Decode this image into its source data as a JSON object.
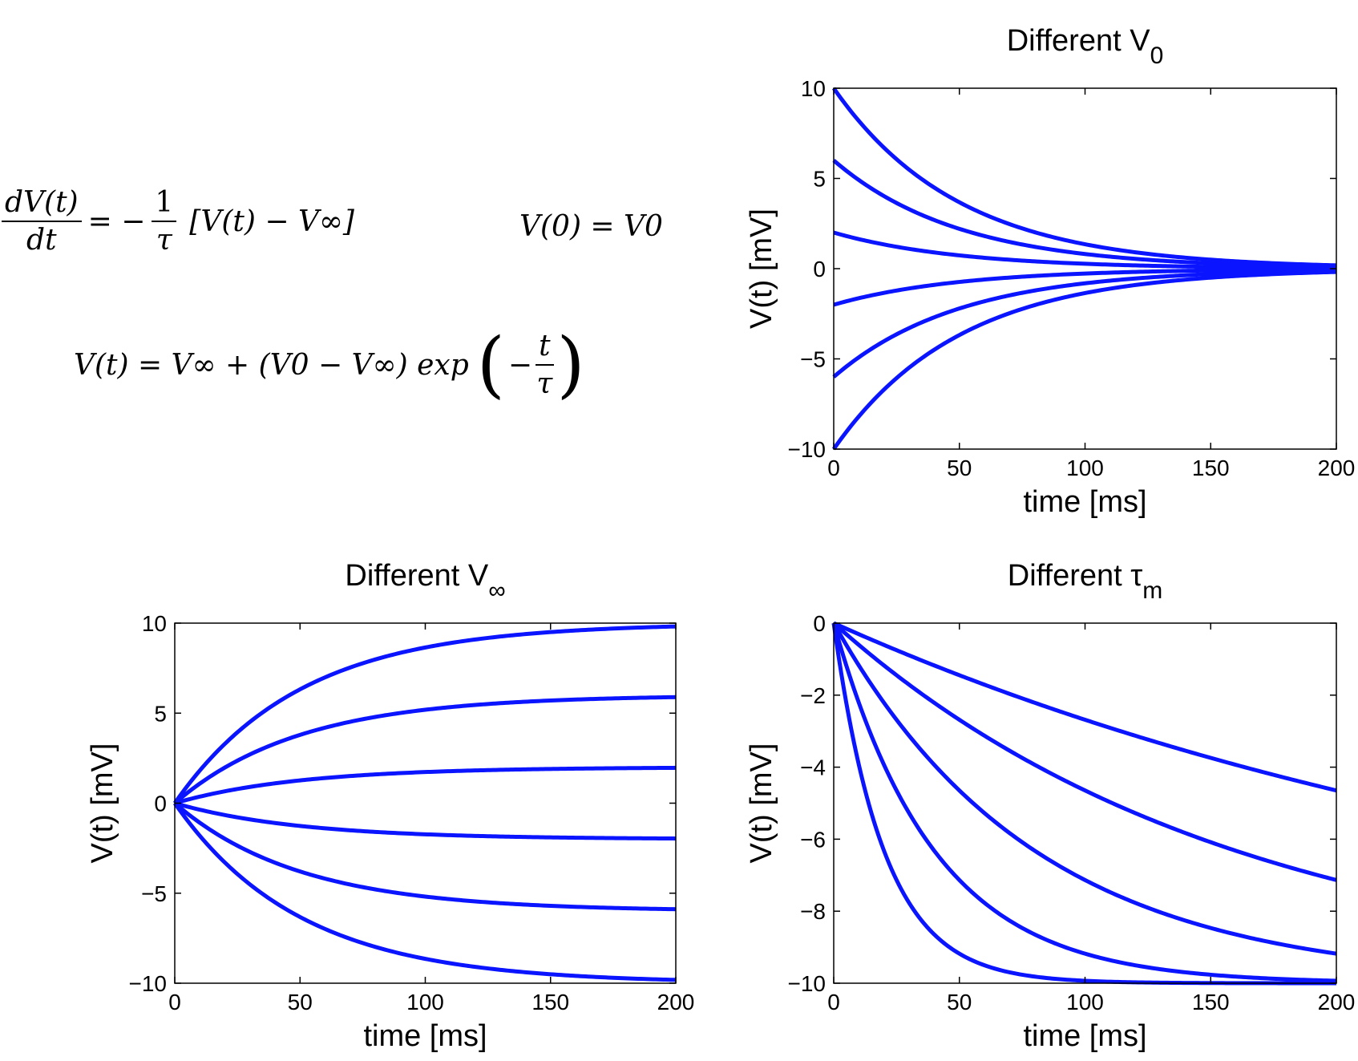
{
  "equations": {
    "ode_lhs_num": "dV(t)",
    "ode_lhs_den": "dt",
    "ode_eq": "= −",
    "ode_rhs_num": "1",
    "ode_rhs_den": "τ",
    "ode_bracket": "[V(t) − V∞]",
    "initial_condition": "V(0) = V0",
    "solution_lhs": "V(t) = V∞ + (V0 − V∞) exp",
    "solution_frac_num": "t",
    "solution_frac_den": "τ"
  },
  "colors": {
    "line": "#0a14ff",
    "axis": "#000000"
  },
  "chart_data": [
    {
      "id": "v0",
      "type": "line",
      "title_main": "Different V",
      "title_sub": "0",
      "xlabel": "time [ms]",
      "ylabel": "V(t) [mV]",
      "xlim": [
        0,
        200
      ],
      "ylim": [
        -10,
        10
      ],
      "xticks": [
        0,
        50,
        100,
        150,
        200
      ],
      "yticks": [
        10,
        5,
        0,
        -5,
        -10
      ],
      "ytick_labels": [
        "10",
        "5",
        "0",
        "−5",
        "−10"
      ],
      "model": "V(t) = Vinf + (V0 - Vinf) exp(-t/tau)",
      "series": [
        {
          "V0": 10,
          "Vinf": 0,
          "tau": 50
        },
        {
          "V0": 6,
          "Vinf": 0,
          "tau": 50
        },
        {
          "V0": 2,
          "Vinf": 0,
          "tau": 50
        },
        {
          "V0": -2,
          "Vinf": 0,
          "tau": 50
        },
        {
          "V0": -6,
          "Vinf": 0,
          "tau": 50
        },
        {
          "V0": -10,
          "Vinf": 0,
          "tau": 50
        }
      ]
    },
    {
      "id": "vinf",
      "type": "line",
      "title_main": "Different  V",
      "title_sub": "∞",
      "xlabel": "time [ms]",
      "ylabel": "V(t) [mV]",
      "xlim": [
        0,
        200
      ],
      "ylim": [
        -10,
        10
      ],
      "xticks": [
        0,
        50,
        100,
        150,
        200
      ],
      "yticks": [
        10,
        5,
        0,
        -5,
        -10
      ],
      "ytick_labels": [
        "10",
        "5",
        "0",
        "−5",
        "−10"
      ],
      "model": "V(t) = Vinf + (V0 - Vinf) exp(-t/tau)",
      "series": [
        {
          "V0": 0,
          "Vinf": 10,
          "tau": 50
        },
        {
          "V0": 0,
          "Vinf": 6,
          "tau": 50
        },
        {
          "V0": 0,
          "Vinf": 2,
          "tau": 50
        },
        {
          "V0": 0,
          "Vinf": -2,
          "tau": 50
        },
        {
          "V0": 0,
          "Vinf": -6,
          "tau": 50
        },
        {
          "V0": 0,
          "Vinf": -10,
          "tau": 50
        }
      ]
    },
    {
      "id": "tau",
      "type": "line",
      "title_main": "Different τ",
      "title_sub": "m",
      "xlabel": "time [ms]",
      "ylabel": "V(t) [mV]",
      "xlim": [
        0,
        200
      ],
      "ylim": [
        -10,
        0
      ],
      "xticks": [
        0,
        50,
        100,
        150,
        200
      ],
      "yticks": [
        0,
        -2,
        -4,
        -6,
        -8,
        -10
      ],
      "ytick_labels": [
        "0",
        "−2",
        "−4",
        "−6",
        "−8",
        "−10"
      ],
      "model": "V(t) = Vinf + (V0 - Vinf) exp(-t/tau)",
      "series": [
        {
          "V0": 0,
          "Vinf": -10,
          "tau": 320
        },
        {
          "V0": 0,
          "Vinf": -10,
          "tau": 160
        },
        {
          "V0": 0,
          "Vinf": -10,
          "tau": 80
        },
        {
          "V0": 0,
          "Vinf": -10,
          "tau": 40
        },
        {
          "V0": 0,
          "Vinf": -10,
          "tau": 20
        }
      ]
    }
  ]
}
